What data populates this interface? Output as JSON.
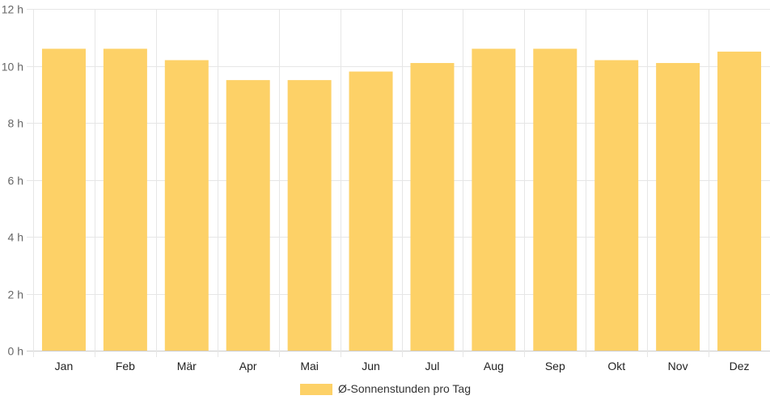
{
  "chart_data": {
    "type": "bar",
    "categories": [
      "Jan",
      "Feb",
      "Mär",
      "Apr",
      "Mai",
      "Jun",
      "Jul",
      "Aug",
      "Sep",
      "Okt",
      "Nov",
      "Dez"
    ],
    "series": [
      {
        "name": "Ø-Sonnenstunden pro Tag",
        "values": [
          10.6,
          10.6,
          10.2,
          9.5,
          9.5,
          9.8,
          10.1,
          10.6,
          10.6,
          10.2,
          10.1,
          10.5
        ]
      }
    ],
    "ylim": [
      0,
      12
    ],
    "yticks": [
      0,
      2,
      4,
      6,
      8,
      10,
      12
    ],
    "ytick_suffix": " h",
    "grid": true,
    "legend_position": "bottom",
    "bar_color": "#fdd167"
  }
}
